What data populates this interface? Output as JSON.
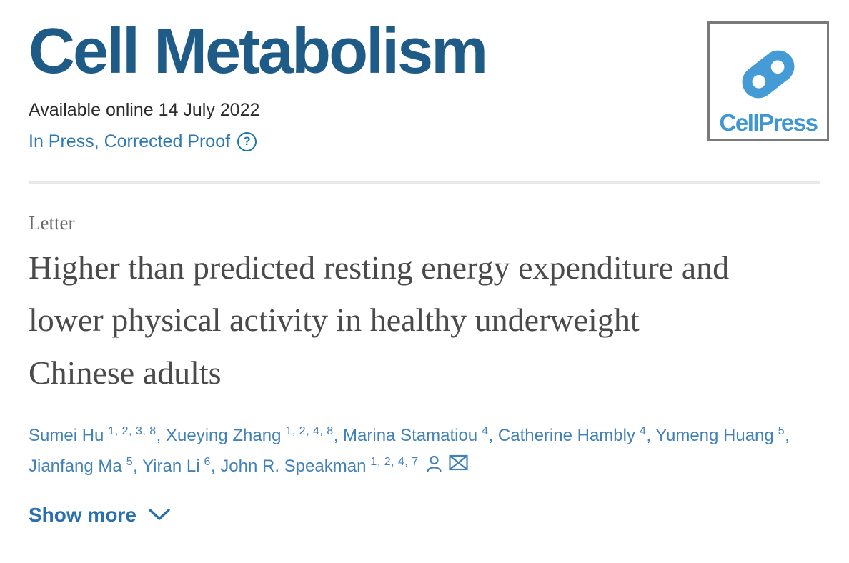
{
  "journal": {
    "name": "Cell Metabolism",
    "available_online": "Available online 14 July 2022",
    "status": "In Press, Corrected Proof",
    "help_icon": "?",
    "publisher": "CellPress"
  },
  "article": {
    "type": "Letter",
    "title": "Higher than predicted resting energy expenditure and lower physical activity in healthy underweight Chinese adults"
  },
  "authors": [
    {
      "name": "Sumei Hu",
      "affiliations": "1, 2, 3, 8"
    },
    {
      "name": "Xueying Zhang",
      "affiliations": "1, 2, 4, 8"
    },
    {
      "name": "Marina Stamatiou",
      "affiliations": "4"
    },
    {
      "name": "Catherine Hambly",
      "affiliations": "4"
    },
    {
      "name": "Yumeng Huang",
      "affiliations": "5"
    },
    {
      "name": "Jianfang Ma",
      "affiliations": "5"
    },
    {
      "name": "Yiran Li",
      "affiliations": "6"
    },
    {
      "name": "John R. Speakman",
      "affiliations": "1, 2, 4, 7",
      "corresponding": true
    }
  ],
  "actions": {
    "show_more": "Show more"
  },
  "colors": {
    "journal_brand": "#1e5b86",
    "link_blue": "#2e79b3",
    "author_blue": "#4181b8",
    "help_teal": "#1a7aa4",
    "logo_blue": "#459bd6",
    "title_gray": "#4a4a4a",
    "divider_gray": "#e9e9e9"
  }
}
